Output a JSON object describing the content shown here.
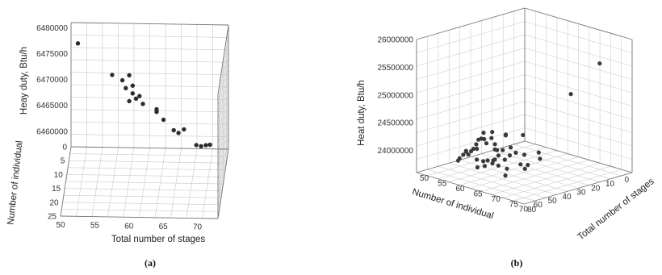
{
  "chart_data": [
    {
      "type": "scatter",
      "panel_label": "(a)",
      "title": "",
      "xlabel": "Total number of stages",
      "ylabel": "Number of individual",
      "zlabel": "Heay duty, Btu/h",
      "xlim": [
        50,
        73
      ],
      "ylim": [
        0,
        25
      ],
      "zlim": [
        6457000,
        6481000
      ],
      "xticks": [
        "50",
        "55",
        "60",
        "65",
        "70"
      ],
      "yticks": [
        "0",
        "5",
        "10",
        "15",
        "20",
        "25"
      ],
      "zticks": [
        "6460000",
        "6465000",
        "6470000",
        "6475000",
        "6480000"
      ],
      "grid": true,
      "x": [
        51,
        56,
        57.5,
        58.5,
        59,
        58,
        59,
        60,
        58.5,
        59.5,
        60.5,
        62.5,
        62.5,
        63.5,
        65,
        65.7,
        66.5,
        68.3,
        69,
        69.7,
        70.3
      ],
      "y": [
        0,
        0,
        0,
        0,
        0,
        0,
        0,
        0,
        0,
        0,
        0,
        0,
        0,
        0,
        0,
        0,
        0,
        0,
        0,
        0,
        0
      ],
      "z": [
        6477000,
        6471000,
        6470000,
        6471000,
        6469000,
        6468500,
        6467500,
        6467000,
        6466000,
        6466500,
        6465500,
        6464500,
        6464000,
        6462500,
        6460500,
        6460000,
        6460700,
        6457700,
        6457500,
        6457700,
        6457800
      ]
    },
    {
      "type": "scatter",
      "panel_label": "(b)",
      "title": "",
      "xlabel": "Number of individual",
      "ylabel": "Total number of stages",
      "zlabel": "Heat duty, Btu/h",
      "xlim": [
        0,
        75
      ],
      "ylim": [
        50,
        80
      ],
      "zlim": [
        23600000,
        26000000
      ],
      "xticks": [
        "0",
        "10",
        "20",
        "30",
        "40",
        "50",
        "60",
        "70"
      ],
      "yticks": [
        "50",
        "55",
        "60",
        "65",
        "70",
        "75",
        "80"
      ],
      "zticks": [
        "24000000",
        "24500000",
        "25000000",
        "25500000",
        "26000000"
      ],
      "grid": true,
      "x": [
        30,
        33,
        36,
        39,
        42,
        45,
        48,
        51,
        54,
        57,
        60,
        63,
        66,
        70,
        33,
        38,
        43,
        48,
        53,
        58,
        63,
        68,
        36,
        42,
        48,
        54,
        60,
        66,
        31,
        40,
        50,
        58,
        64,
        70,
        35,
        45,
        55,
        62,
        44,
        52,
        60,
        68,
        38,
        48,
        56,
        72,
        20,
        40
      ],
      "y": [
        53,
        54,
        53,
        55,
        54,
        56,
        55,
        57,
        56,
        58,
        57,
        59,
        58,
        60,
        58,
        57,
        59,
        58,
        61,
        60,
        62,
        61,
        62,
        63,
        62,
        64,
        63,
        65,
        62,
        66,
        64,
        66,
        67,
        65,
        68,
        69,
        68,
        70,
        72,
        71,
        73,
        72,
        60,
        61,
        67,
        70,
        79,
        79
      ],
      "z": [
        24050000,
        23980000,
        24080000,
        23950000,
        24020000,
        24100000,
        23920000,
        24060000,
        23880000,
        24000000,
        23940000,
        24070000,
        23900000,
        24010000,
        24120000,
        23870000,
        24040000,
        24150000,
        23860000,
        24090000,
        23970000,
        24130000,
        23890000,
        24050000,
        23930000,
        24110000,
        23850000,
        24020000,
        24170000,
        23960000,
        24080000,
        23900000,
        24060000,
        23940000,
        24000000,
        23870000,
        24100000,
        23950000,
        24030000,
        23890000,
        24070000,
        23910000,
        24180000,
        23840000,
        24010000,
        24120000,
        25700000,
        25300000
      ]
    }
  ]
}
